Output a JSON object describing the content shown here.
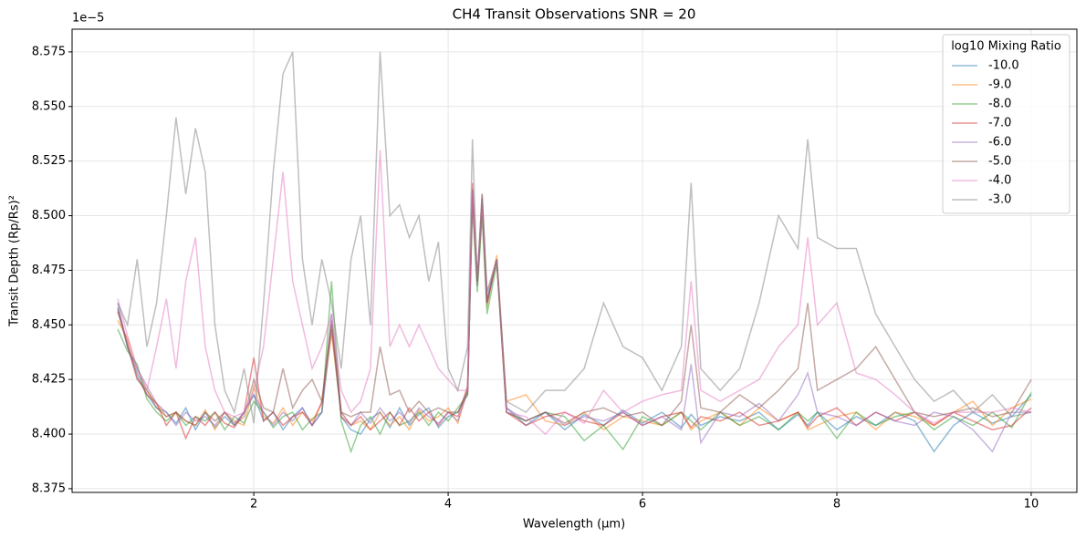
{
  "chart_data": {
    "type": "line",
    "title": "CH4 Transit Observations SNR = 20",
    "x_label": "Wavelength (μm)",
    "y_label": "Transit Depth (Rp/Rs)²",
    "y_offset_label": "1e−5",
    "legend_title": "log10 Mixing Ratio",
    "legend_position": "upper right",
    "grid": true,
    "xlim": [
      0.13,
      10.47
    ],
    "xticks": [
      2,
      4,
      6,
      8,
      10
    ],
    "ylim": [
      8.3733,
      8.5854
    ],
    "yticks": [
      {
        "value": 8.375,
        "label": "8.375"
      },
      {
        "value": 8.4,
        "label": "8.400"
      },
      {
        "value": 8.425,
        "label": "8.425"
      },
      {
        "value": 8.45,
        "label": "8.450"
      },
      {
        "value": 8.475,
        "label": "8.475"
      },
      {
        "value": 8.5,
        "label": "8.500"
      },
      {
        "value": 8.525,
        "label": "8.525"
      },
      {
        "value": 8.55,
        "label": "8.550"
      },
      {
        "value": 8.575,
        "label": "8.575"
      }
    ],
    "x": [
      0.6,
      0.7,
      0.8,
      0.9,
      1.0,
      1.1,
      1.2,
      1.3,
      1.4,
      1.5,
      1.6,
      1.7,
      1.8,
      1.9,
      2.0,
      2.1,
      2.2,
      2.3,
      2.4,
      2.5,
      2.6,
      2.7,
      2.8,
      2.9,
      3.0,
      3.1,
      3.2,
      3.3,
      3.4,
      3.5,
      3.6,
      3.7,
      3.8,
      3.9,
      4.0,
      4.1,
      4.2,
      4.25,
      4.3,
      4.35,
      4.4,
      4.5,
      4.6,
      4.8,
      5.0,
      5.2,
      5.4,
      5.6,
      5.8,
      6.0,
      6.2,
      6.4,
      6.5,
      6.6,
      6.8,
      7.0,
      7.2,
      7.4,
      7.6,
      7.7,
      7.8,
      8.0,
      8.2,
      8.4,
      8.6,
      8.8,
      9.0,
      9.2,
      9.4,
      9.6,
      9.8,
      10.0
    ],
    "series": [
      {
        "name": "-10.0",
        "color": "#1f77b4",
        "values": [
          8.458,
          8.44,
          8.428,
          8.418,
          8.412,
          8.41,
          8.405,
          8.412,
          8.402,
          8.41,
          8.403,
          8.408,
          8.404,
          8.41,
          8.418,
          8.406,
          8.41,
          8.402,
          8.408,
          8.412,
          8.404,
          8.41,
          8.448,
          8.408,
          8.402,
          8.4,
          8.407,
          8.41,
          8.403,
          8.412,
          8.404,
          8.409,
          8.412,
          8.403,
          8.408,
          8.41,
          8.418,
          8.512,
          8.47,
          8.508,
          8.462,
          8.48,
          8.412,
          8.404,
          8.41,
          8.402,
          8.409,
          8.404,
          8.411,
          8.405,
          8.41,
          8.403,
          8.409,
          8.404,
          8.408,
          8.406,
          8.41,
          8.402,
          8.409,
          8.404,
          8.41,
          8.402,
          8.408,
          8.404,
          8.41,
          8.406,
          8.392,
          8.404,
          8.41,
          8.405,
          8.408,
          8.418
        ]
      },
      {
        "name": "-9.0",
        "color": "#ff7f0e",
        "values": [
          8.452,
          8.444,
          8.43,
          8.42,
          8.414,
          8.408,
          8.41,
          8.406,
          8.404,
          8.411,
          8.402,
          8.41,
          8.406,
          8.404,
          8.422,
          8.408,
          8.405,
          8.412,
          8.404,
          8.41,
          8.406,
          8.414,
          8.446,
          8.41,
          8.404,
          8.406,
          8.402,
          8.41,
          8.404,
          8.408,
          8.402,
          8.411,
          8.406,
          8.408,
          8.412,
          8.405,
          8.42,
          8.508,
          8.468,
          8.502,
          8.458,
          8.482,
          8.415,
          8.418,
          8.406,
          8.404,
          8.41,
          8.402,
          8.408,
          8.406,
          8.404,
          8.41,
          8.402,
          8.406,
          8.41,
          8.404,
          8.412,
          8.406,
          8.41,
          8.402,
          8.404,
          8.408,
          8.41,
          8.402,
          8.41,
          8.408,
          8.404,
          8.41,
          8.415,
          8.404,
          8.412,
          8.416
        ]
      },
      {
        "name": "-8.0",
        "color": "#2ca02c",
        "values": [
          8.448,
          8.438,
          8.432,
          8.416,
          8.41,
          8.406,
          8.41,
          8.404,
          8.408,
          8.406,
          8.41,
          8.402,
          8.408,
          8.405,
          8.415,
          8.41,
          8.403,
          8.408,
          8.41,
          8.402,
          8.407,
          8.41,
          8.47,
          8.406,
          8.392,
          8.404,
          8.408,
          8.4,
          8.41,
          8.404,
          8.406,
          8.41,
          8.404,
          8.41,
          8.406,
          8.412,
          8.418,
          8.505,
          8.465,
          8.5,
          8.455,
          8.478,
          8.41,
          8.406,
          8.41,
          8.408,
          8.397,
          8.404,
          8.393,
          8.408,
          8.404,
          8.41,
          8.406,
          8.402,
          8.41,
          8.404,
          8.408,
          8.402,
          8.41,
          8.406,
          8.41,
          8.398,
          8.41,
          8.404,
          8.408,
          8.41,
          8.402,
          8.408,
          8.404,
          8.41,
          8.403,
          8.419
        ]
      },
      {
        "name": "-7.0",
        "color": "#d62728",
        "values": [
          8.456,
          8.442,
          8.426,
          8.418,
          8.414,
          8.404,
          8.41,
          8.398,
          8.408,
          8.404,
          8.41,
          8.405,
          8.403,
          8.41,
          8.435,
          8.406,
          8.41,
          8.404,
          8.408,
          8.41,
          8.404,
          8.415,
          8.452,
          8.408,
          8.404,
          8.408,
          8.402,
          8.406,
          8.41,
          8.404,
          8.412,
          8.406,
          8.41,
          8.404,
          8.41,
          8.408,
          8.422,
          8.515,
          8.47,
          8.51,
          8.46,
          8.48,
          8.41,
          8.404,
          8.408,
          8.41,
          8.406,
          8.404,
          8.41,
          8.404,
          8.408,
          8.41,
          8.403,
          8.408,
          8.406,
          8.41,
          8.404,
          8.406,
          8.41,
          8.403,
          8.408,
          8.412,
          8.404,
          8.41,
          8.406,
          8.41,
          8.404,
          8.41,
          8.406,
          8.402,
          8.404,
          8.412
        ]
      },
      {
        "name": "-6.0",
        "color": "#9467bd",
        "values": [
          8.46,
          8.44,
          8.43,
          8.422,
          8.414,
          8.41,
          8.404,
          8.41,
          8.406,
          8.408,
          8.404,
          8.41,
          8.405,
          8.41,
          8.418,
          8.41,
          8.404,
          8.41,
          8.406,
          8.412,
          8.404,
          8.41,
          8.455,
          8.41,
          8.404,
          8.41,
          8.405,
          8.412,
          8.406,
          8.41,
          8.405,
          8.412,
          8.408,
          8.405,
          8.41,
          8.406,
          8.42,
          8.51,
          8.468,
          8.505,
          8.46,
          8.48,
          8.412,
          8.406,
          8.41,
          8.404,
          8.408,
          8.406,
          8.41,
          8.404,
          8.408,
          8.402,
          8.432,
          8.396,
          8.41,
          8.408,
          8.414,
          8.406,
          8.418,
          8.428,
          8.41,
          8.408,
          8.404,
          8.41,
          8.406,
          8.404,
          8.41,
          8.408,
          8.402,
          8.392,
          8.41,
          8.41
        ]
      },
      {
        "name": "-5.0",
        "color": "#8c564b",
        "values": [
          8.457,
          8.44,
          8.425,
          8.42,
          8.412,
          8.408,
          8.41,
          8.406,
          8.404,
          8.41,
          8.406,
          8.41,
          8.404,
          8.408,
          8.425,
          8.412,
          8.41,
          8.43,
          8.412,
          8.42,
          8.425,
          8.415,
          8.45,
          8.41,
          8.408,
          8.41,
          8.41,
          8.44,
          8.418,
          8.42,
          8.41,
          8.415,
          8.41,
          8.412,
          8.41,
          8.41,
          8.42,
          8.51,
          8.47,
          8.505,
          8.46,
          8.48,
          8.41,
          8.406,
          8.41,
          8.405,
          8.41,
          8.412,
          8.408,
          8.41,
          8.404,
          8.415,
          8.45,
          8.412,
          8.41,
          8.418,
          8.412,
          8.42,
          8.43,
          8.46,
          8.42,
          8.425,
          8.43,
          8.44,
          8.425,
          8.41,
          8.408,
          8.41,
          8.412,
          8.408,
          8.41,
          8.425
        ]
      },
      {
        "name": "-4.0",
        "color": "#e377c2",
        "values": [
          8.462,
          8.445,
          8.43,
          8.42,
          8.44,
          8.462,
          8.43,
          8.47,
          8.49,
          8.44,
          8.42,
          8.41,
          8.408,
          8.41,
          8.42,
          8.44,
          8.48,
          8.52,
          8.47,
          8.45,
          8.43,
          8.44,
          8.455,
          8.42,
          8.41,
          8.415,
          8.43,
          8.53,
          8.44,
          8.45,
          8.44,
          8.45,
          8.44,
          8.43,
          8.425,
          8.42,
          8.42,
          8.51,
          8.472,
          8.505,
          8.465,
          8.48,
          8.41,
          8.408,
          8.4,
          8.41,
          8.405,
          8.42,
          8.41,
          8.415,
          8.418,
          8.42,
          8.47,
          8.42,
          8.415,
          8.42,
          8.425,
          8.44,
          8.45,
          8.49,
          8.45,
          8.46,
          8.428,
          8.425,
          8.418,
          8.41,
          8.405,
          8.41,
          8.41,
          8.41,
          8.412,
          8.41
        ]
      },
      {
        "name": "-3.0",
        "color": "#7f7f7f",
        "values": [
          8.46,
          8.45,
          8.48,
          8.44,
          8.46,
          8.5,
          8.545,
          8.51,
          8.54,
          8.52,
          8.45,
          8.42,
          8.41,
          8.43,
          8.405,
          8.46,
          8.52,
          8.565,
          8.575,
          8.48,
          8.45,
          8.48,
          8.46,
          8.43,
          8.48,
          8.5,
          8.45,
          8.575,
          8.5,
          8.505,
          8.49,
          8.5,
          8.47,
          8.488,
          8.43,
          8.42,
          8.44,
          8.535,
          8.47,
          8.51,
          8.465,
          8.48,
          8.415,
          8.41,
          8.42,
          8.42,
          8.43,
          8.46,
          8.44,
          8.435,
          8.42,
          8.44,
          8.515,
          8.43,
          8.42,
          8.43,
          8.46,
          8.5,
          8.485,
          8.535,
          8.49,
          8.485,
          8.485,
          8.455,
          8.44,
          8.425,
          8.415,
          8.42,
          8.41,
          8.418,
          8.408,
          8.41
        ]
      }
    ]
  }
}
